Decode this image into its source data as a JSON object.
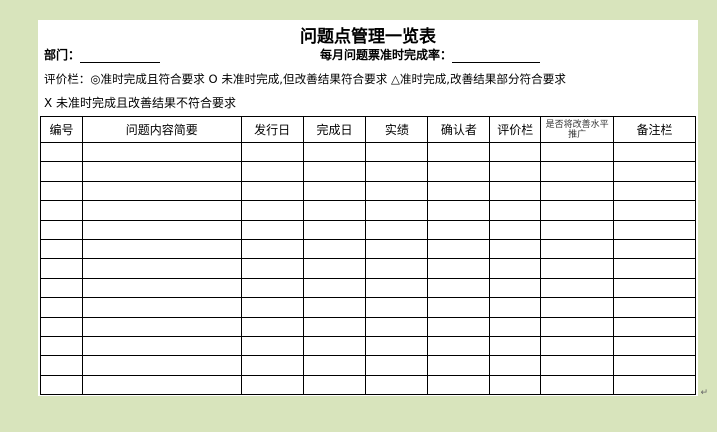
{
  "title": "问题点管理一览表",
  "department_label": "部门：",
  "rate_label": "每月问题票准时完成率：",
  "legend_line1": "评价栏：◎准时完成且符合要求  O 未准时完成,但改善结果符合要求  △准时完成,改善结果部分符合要求",
  "legend_line2": "X 未准时完成且改善结果不符合要求",
  "columns": [
    "编号",
    "问题内容简要",
    "发行日",
    "完成日",
    "实绩",
    "确认者",
    "评价栏",
    "是否将改善水平推广",
    "备注栏"
  ],
  "empty_rows": 13,
  "colors": {
    "background": "#d8e4bc",
    "page": "#ffffff"
  }
}
